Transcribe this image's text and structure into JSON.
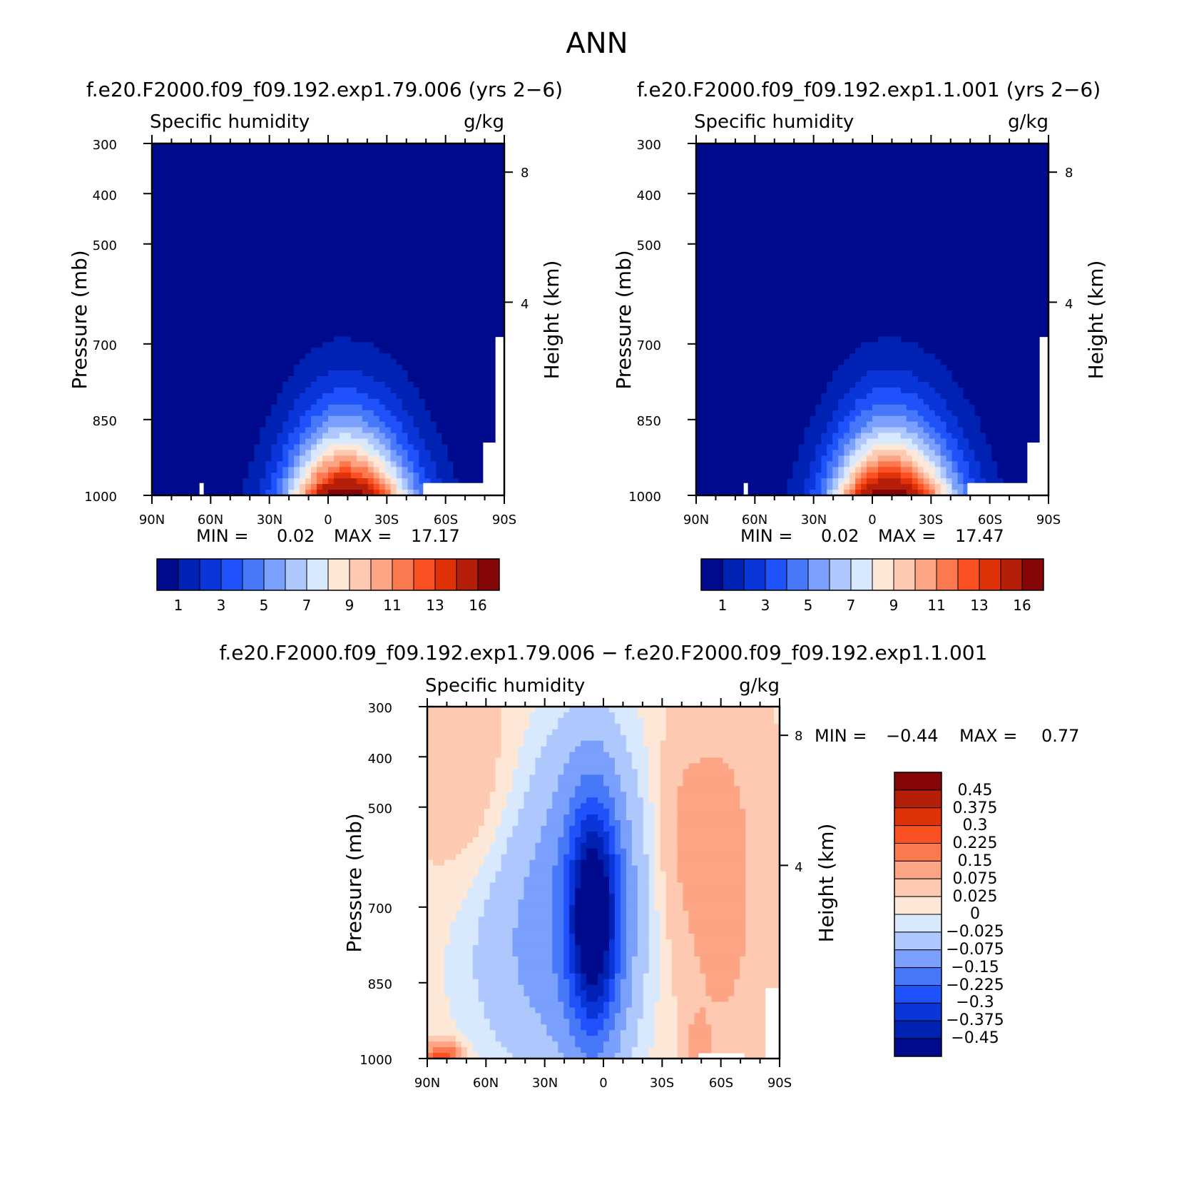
{
  "figure": {
    "title": "ANN",
    "diff_title": "f.e20.F2000.f09_f09.192.exp1.79.006 − f.e20.F2000.f09_f09.192.exp1.1.001"
  },
  "chart_data": [
    {
      "type": "heatmap",
      "id": "case1",
      "title": "f.e20.F2000.f09_f09.192.exp1.79.006 (yrs 2−6)",
      "variable": "Specific humidity",
      "units": "g/kg",
      "ylabel": "Pressure (mb)",
      "y2label": "Height (km)",
      "yticks": [
        "300",
        "400",
        "500",
        "700",
        "850",
        "1000"
      ],
      "y2ticks": [
        "8",
        "4"
      ],
      "xticks": [
        "90N",
        "60N",
        "30N",
        "0",
        "30S",
        "60S",
        "90S"
      ],
      "min_label": "MIN =",
      "min": "0.02",
      "max_label": "MAX =",
      "max": "17.17",
      "colorbar_labels": [
        "1",
        "3",
        "5",
        "7",
        "9",
        "11",
        "13",
        "16"
      ],
      "colorbar_levels": [
        0.5,
        1,
        2,
        3,
        4,
        5,
        6,
        7,
        8,
        9,
        10,
        11,
        12,
        13,
        14,
        16
      ],
      "peak": 17.17
    },
    {
      "type": "heatmap",
      "id": "case2",
      "title": "f.e20.F2000.f09_f09.192.exp1.1.001 (yrs 2−6)",
      "variable": "Specific humidity",
      "units": "g/kg",
      "ylabel": "Pressure (mb)",
      "y2label": "Height (km)",
      "yticks": [
        "300",
        "400",
        "500",
        "700",
        "850",
        "1000"
      ],
      "y2ticks": [
        "8",
        "4"
      ],
      "xticks": [
        "90N",
        "60N",
        "30N",
        "0",
        "30S",
        "60S",
        "90S"
      ],
      "min_label": "MIN =",
      "min": "0.02",
      "max_label": "MAX =",
      "max": "17.47",
      "colorbar_labels": [
        "1",
        "3",
        "5",
        "7",
        "9",
        "11",
        "13",
        "16"
      ],
      "colorbar_levels": [
        0.5,
        1,
        2,
        3,
        4,
        5,
        6,
        7,
        8,
        9,
        10,
        11,
        12,
        13,
        14,
        16
      ],
      "peak": 17.47
    },
    {
      "type": "heatmap",
      "id": "diff",
      "variable": "Specific humidity",
      "units": "g/kg",
      "ylabel": "Pressure (mb)",
      "y2label": "Height (km)",
      "yticks": [
        "300",
        "400",
        "500",
        "700",
        "850",
        "1000"
      ],
      "y2ticks": [
        "8",
        "4"
      ],
      "xticks": [
        "90N",
        "60N",
        "30N",
        "0",
        "30S",
        "60S",
        "90S"
      ],
      "min_label": "MIN =",
      "min": "−0.44",
      "max_label": "MAX =",
      "max": "0.77",
      "colorbar_labels": [
        "0.45",
        "0.375",
        "0.3",
        "0.225",
        "0.15",
        "0.075",
        "0.025",
        "0",
        "−0.025",
        "−0.075",
        "−0.15",
        "−0.225",
        "−0.3",
        "−0.375",
        "−0.45"
      ]
    }
  ],
  "palettes": {
    "sequential": [
      "#000a8c",
      "#0022b3",
      "#0a35d9",
      "#1f52fa",
      "#4778fa",
      "#7a9ffc",
      "#aec8fd",
      "#d8e9fe",
      "#fde8d7",
      "#fdc9b0",
      "#fca483",
      "#fc7950",
      "#fb5021",
      "#e03209",
      "#b51e09",
      "#850607"
    ],
    "diverging": [
      "#850607",
      "#b51e09",
      "#e03209",
      "#fb5021",
      "#fc7950",
      "#fca483",
      "#fdc9b0",
      "#fde8d7",
      "#d8e9fe",
      "#aec8fd",
      "#7a9ffc",
      "#4778fa",
      "#1f52fa",
      "#0a35d9",
      "#0022b3",
      "#000a8c"
    ]
  }
}
